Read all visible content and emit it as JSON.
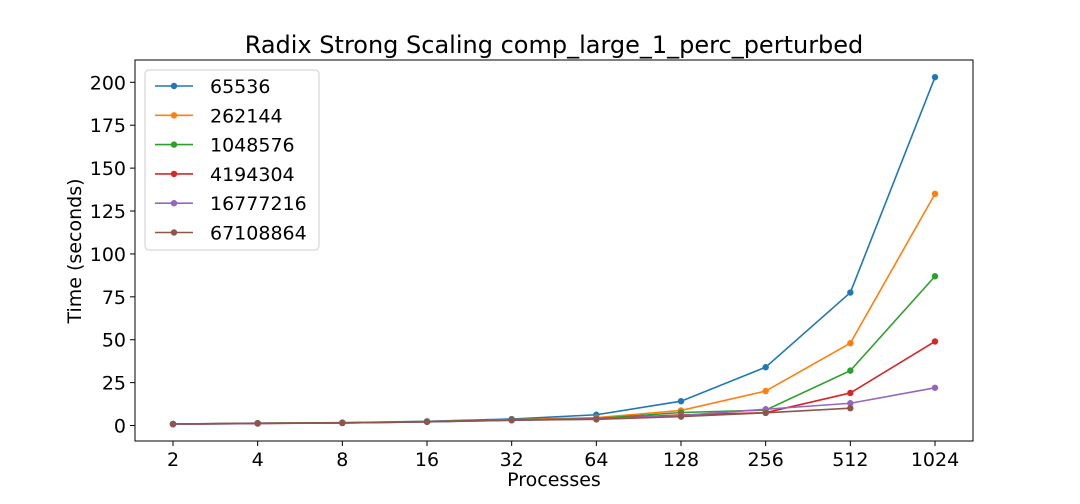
{
  "chart_data": {
    "type": "line",
    "title": "Radix Strong Scaling comp_large_1_perc_perturbed",
    "xlabel": "Processes",
    "ylabel": "Time (seconds)",
    "categories": [
      "2",
      "4",
      "8",
      "16",
      "32",
      "64",
      "128",
      "256",
      "512",
      "1024"
    ],
    "y_ticks": [
      "0",
      "25",
      "50",
      "75",
      "100",
      "125",
      "150",
      "175",
      "200"
    ],
    "ylim": [
      -9,
      213
    ],
    "grid": false,
    "legend_position": "top-left",
    "series": [
      {
        "name": "65536",
        "color": "#1f77b4",
        "values": [
          0.9,
          1.4,
          1.7,
          2.5,
          3.8,
          6.3,
          14.2,
          34.0,
          77.5,
          203.0
        ]
      },
      {
        "name": "262144",
        "color": "#ff7f0e",
        "values": [
          0.8,
          1.3,
          1.6,
          2.3,
          3.4,
          4.6,
          8.8,
          20.1,
          48.0,
          135.0
        ]
      },
      {
        "name": "1048576",
        "color": "#2ca02c",
        "values": [
          0.8,
          1.3,
          1.6,
          2.3,
          3.3,
          4.1,
          7.6,
          9.0,
          32.0,
          87.0
        ]
      },
      {
        "name": "4194304",
        "color": "#d62728",
        "values": [
          0.8,
          1.2,
          1.5,
          2.2,
          3.2,
          3.9,
          6.2,
          7.5,
          19.0,
          49.0
        ]
      },
      {
        "name": "16777216",
        "color": "#9467bd",
        "values": [
          0.8,
          1.2,
          1.5,
          2.2,
          3.1,
          3.8,
          5.8,
          9.5,
          13.0,
          22.0
        ]
      },
      {
        "name": "67108864",
        "color": "#8c564b",
        "values": [
          0.9,
          1.3,
          1.5,
          2.2,
          3.1,
          3.6,
          5.2,
          7.4,
          10.1,
          null
        ]
      }
    ]
  }
}
